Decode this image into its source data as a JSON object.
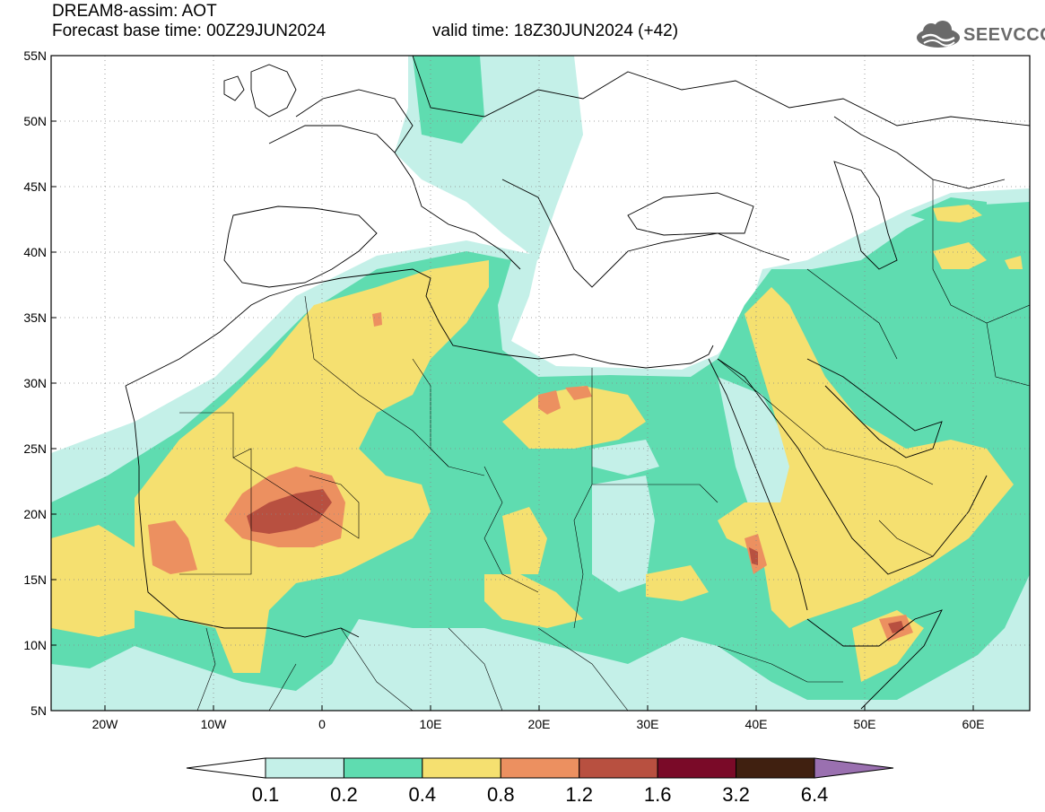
{
  "title": {
    "line1": "DREAM8-assim: AOT",
    "line2": "Forecast base time: 00Z29JUN2024",
    "valid": "valid time: 18Z30JUN2024 (+42)"
  },
  "logo": {
    "text": "SEEVCCC",
    "icon": "cloud-icon"
  },
  "axes": {
    "lat_labels": [
      "55N",
      "50N",
      "45N",
      "40N",
      "35N",
      "30N",
      "25N",
      "20N",
      "15N",
      "10N",
      "5N"
    ],
    "lon_labels": [
      "20W",
      "10W",
      "0",
      "10E",
      "20E",
      "30E",
      "40E",
      "50E",
      "60E"
    ]
  },
  "colorbar": {
    "labels": [
      "0.1",
      "0.2",
      "0.4",
      "0.8",
      "1.2",
      "1.6",
      "3.2",
      "6.4"
    ],
    "colors": [
      "#c4f0e8",
      "#5fdcb0",
      "#f5e070",
      "#ec9060",
      "#b85040",
      "#7a0a28",
      "#402010"
    ],
    "over_color": "#9a70b0",
    "under_color": "#ffffff"
  },
  "palette": {
    "light": "#c4f0e8",
    "green": "#5fdcb0",
    "yellow": "#f5e070",
    "orange": "#ec9060",
    "brown": "#b85040"
  }
}
